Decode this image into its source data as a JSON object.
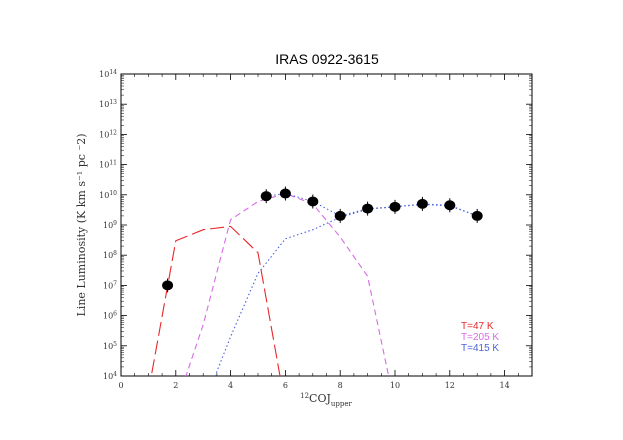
{
  "chart_data": {
    "type": "line",
    "title": "IRAS 0922-3615",
    "xlabel_main": "12",
    "xlabel_sub": "upper",
    "xlabel_mid": "COJ",
    "ylabel": "Line Luminosity (K km s⁻¹ pc ⁻2)",
    "xlim": [
      0,
      15
    ],
    "ylim_log10": [
      4,
      14
    ],
    "x_ticks": [
      0,
      2,
      4,
      6,
      8,
      10,
      12,
      14
    ],
    "y_ticks": [
      {
        "exp": 4,
        "label": "10",
        "sup": "4"
      },
      {
        "exp": 5,
        "label": "10",
        "sup": "5"
      },
      {
        "exp": 6,
        "label": "10",
        "sup": "6"
      },
      {
        "exp": 7,
        "label": "10",
        "sup": "7"
      },
      {
        "exp": 8,
        "label": "10",
        "sup": "8"
      },
      {
        "exp": 9,
        "label": "10",
        "sup": "9"
      },
      {
        "exp": 10,
        "label": "10",
        "sup": "10"
      },
      {
        "exp": 11,
        "label": "10",
        "sup": "11"
      },
      {
        "exp": 12,
        "label": "10",
        "sup": "12"
      },
      {
        "exp": 13,
        "label": "10",
        "sup": "13"
      },
      {
        "exp": 14,
        "label": "10",
        "sup": "14"
      }
    ],
    "observed": {
      "x": [
        1.7,
        5.3,
        6,
        7,
        8,
        9,
        10,
        11,
        12,
        13
      ],
      "y": [
        10000000.0,
        9000000000.0,
        11000000000.0,
        6000000000.0,
        2000000000.0,
        3500000000.0,
        4000000000.0,
        5000000000.0,
        4500000000.0,
        2000000000.0
      ],
      "color": "#000000"
    },
    "series": [
      {
        "name": "T=47 K",
        "color": "#e8262b",
        "style": "long-dash",
        "x": [
          1,
          2,
          3,
          4,
          5,
          6
        ],
        "y": [
          3000.0,
          300000000.0,
          700000000.0,
          900000000.0,
          120000000.0,
          1000.0
        ]
      },
      {
        "name": "T=205 K",
        "color": "#d96ae8",
        "style": "dash",
        "x": [
          2,
          3,
          4,
          5,
          6,
          7,
          8,
          9,
          10
        ],
        "y": [
          1000.0,
          500000.0,
          1500000000.0,
          6000000000.0,
          11000000000.0,
          5000000000.0,
          400000000.0,
          20000000.0,
          1000.0
        ]
      },
      {
        "name": "T=415 K",
        "color": "#4a60e0",
        "style": "dot",
        "x": [
          3,
          4,
          5,
          6,
          7,
          8,
          9,
          10,
          11,
          12,
          13
        ],
        "y": [
          1000.0,
          200000.0,
          25000000.0,
          350000000.0,
          700000000.0,
          1800000000.0,
          3300000000.0,
          4000000000.0,
          4800000000.0,
          4300000000.0,
          2000000000.0
        ]
      }
    ],
    "legend_position": "bottom-right"
  }
}
